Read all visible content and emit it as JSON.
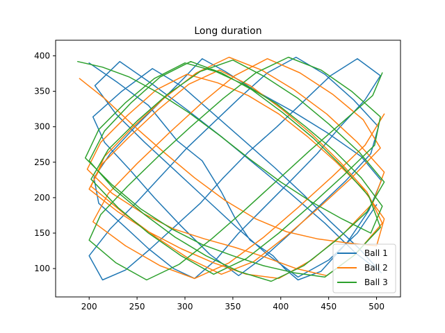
{
  "chart_data": {
    "type": "line",
    "title": "Long duration",
    "xlabel": "",
    "ylabel": "",
    "xlim": [
      165,
      525
    ],
    "ylim": [
      60,
      422
    ],
    "xticks": [
      200,
      250,
      300,
      350,
      400,
      450,
      500
    ],
    "yticks": [
      100,
      150,
      200,
      250,
      300,
      350,
      400
    ],
    "grid": false,
    "legend_position": "bottom-right",
    "series": [
      {
        "name": "Ball 1",
        "color": "#1f77b4",
        "x": [
          200,
          230,
          262,
          292,
          318,
          338,
          352,
          368,
          392,
          404,
          418,
          442,
          470,
          492,
          505,
          484,
          448,
          412,
          372,
          342,
          318,
          300,
          272,
          248,
          222,
          205,
          210,
          238,
          262,
          288,
          310,
          332,
          356,
          384,
          412,
          438,
          462,
          488,
          504,
          480,
          452,
          424,
          396,
          366,
          340,
          316,
          290,
          264,
          238,
          214,
          200,
          222,
          250,
          276,
          302,
          330,
          358,
          386,
          416,
          446,
          476,
          502,
          494,
          468,
          440,
          412,
          384,
          356,
          326,
          296,
          268,
          242,
          216,
          204,
          234,
          266,
          298,
          330,
          362,
          394,
          424,
          452,
          482,
          505,
          478,
          446,
          410,
          374,
          338,
          302,
          266,
          232,
          206,
          228,
          258,
          290,
          322,
          354,
          386,
          418,
          450,
          480,
          500
        ],
        "y": [
          390,
          362,
          330,
          280,
          252,
          208,
          172,
          140,
          118,
          100,
          84,
          96,
          138,
          182,
          224,
          258,
          292,
          322,
          352,
          378,
          396,
          370,
          332,
          300,
          262,
          228,
          192,
          158,
          128,
          100,
          86,
          112,
          150,
          188,
          226,
          262,
          300,
          338,
          372,
          396,
          372,
          336,
          300,
          264,
          228,
          192,
          160,
          128,
          98,
          84,
          118,
          156,
          194,
          232,
          270,
          306,
          342,
          376,
          398,
          374,
          338,
          300,
          262,
          224,
          188,
          152,
          118,
          90,
          120,
          160,
          200,
          240,
          278,
          314,
          350,
          382,
          356,
          318,
          280,
          242,
          204,
          166,
          128,
          94,
          122,
          164,
          206,
          246,
          286,
          324,
          360,
          392,
          358,
          318,
          278,
          238,
          198,
          158,
          120,
          88,
          112,
          150,
          190
        ]
      },
      {
        "name": "Ball 2",
        "color": "#ff7f0e",
        "x": [
          190,
          216,
          246,
          278,
          310,
          342,
          374,
          406,
          438,
          470,
          500,
          508,
          486,
          458,
          428,
          398,
          366,
          334,
          302,
          270,
          240,
          212,
          198,
          224,
          256,
          288,
          320,
          352,
          384,
          416,
          448,
          478,
          506,
          490,
          462,
          432,
          400,
          368,
          336,
          304,
          272,
          242,
          214,
          200,
          230,
          262,
          296,
          330,
          364,
          398,
          432,
          466,
          496,
          508,
          480,
          448,
          414,
          380,
          346,
          312,
          278,
          246,
          216,
          202,
          236,
          270,
          304,
          338,
          372,
          406,
          440,
          474,
          504,
          486,
          454,
          420,
          386,
          352,
          318,
          284,
          250,
          220,
          204,
          238,
          274,
          310,
          346,
          382,
          418,
          454,
          488,
          508
        ],
        "y": [
          368,
          340,
          302,
          264,
          228,
          196,
          170,
          152,
          142,
          136,
          132,
          170,
          212,
          250,
          286,
          318,
          344,
          362,
          374,
          352,
          316,
          278,
          240,
          206,
          178,
          156,
          142,
          130,
          116,
          100,
          90,
          120,
          164,
          208,
          250,
          290,
          326,
          358,
          380,
          360,
          324,
          286,
          248,
          212,
          180,
          152,
          128,
          108,
          92,
          86,
          112,
          150,
          192,
          236,
          278,
          318,
          352,
          380,
          398,
          376,
          340,
          300,
          258,
          216,
          178,
          144,
          114,
          92,
          110,
          146,
          186,
          228,
          270,
          310,
          346,
          376,
          396,
          372,
          334,
          292,
          248,
          206,
          166,
          132,
          104,
          86,
          108,
          144,
          186,
          230,
          274,
          318
        ]
      },
      {
        "name": "Ball 3",
        "color": "#2ca02c",
        "x": [
          188,
          214,
          242,
          272,
          304,
          336,
          368,
          400,
          432,
          464,
          494,
          506,
          484,
          456,
          426,
          396,
          364,
          332,
          300,
          268,
          238,
          210,
          196,
          224,
          254,
          286,
          318,
          350,
          382,
          414,
          446,
          476,
          504,
          492,
          464,
          434,
          402,
          370,
          338,
          306,
          274,
          244,
          216,
          200,
          226,
          258,
          290,
          322,
          356,
          390,
          424,
          458,
          490,
          508,
          482,
          450,
          418,
          384,
          350,
          316,
          282,
          250,
          220,
          202,
          230,
          262,
          296,
          330,
          364,
          398,
          432,
          466,
          498,
          504,
          474,
          442,
          408,
          374,
          340,
          306,
          272,
          240,
          212,
          200,
          228,
          260,
          294,
          328,
          362,
          396,
          430,
          464,
          496,
          506
        ],
        "y": [
          392,
          384,
          370,
          348,
          320,
          288,
          254,
          222,
          194,
          170,
          150,
          188,
          228,
          266,
          300,
          332,
          358,
          378,
          390,
          368,
          334,
          296,
          256,
          218,
          184,
          156,
          134,
          118,
          104,
          94,
          88,
          118,
          158,
          202,
          244,
          284,
          320,
          352,
          376,
          392,
          370,
          334,
          294,
          252,
          212,
          176,
          144,
          118,
          96,
          82,
          104,
          140,
          180,
          222,
          264,
          304,
          340,
          370,
          394,
          378,
          346,
          308,
          268,
          226,
          186,
          150,
          118,
          92,
          114,
          150,
          190,
          232,
          274,
          314,
          350,
          380,
          398,
          376,
          340,
          300,
          258,
          216,
          176,
          140,
          108,
          84,
          106,
          142,
          182,
          224,
          266,
          306,
          344,
          376
        ]
      }
    ]
  }
}
